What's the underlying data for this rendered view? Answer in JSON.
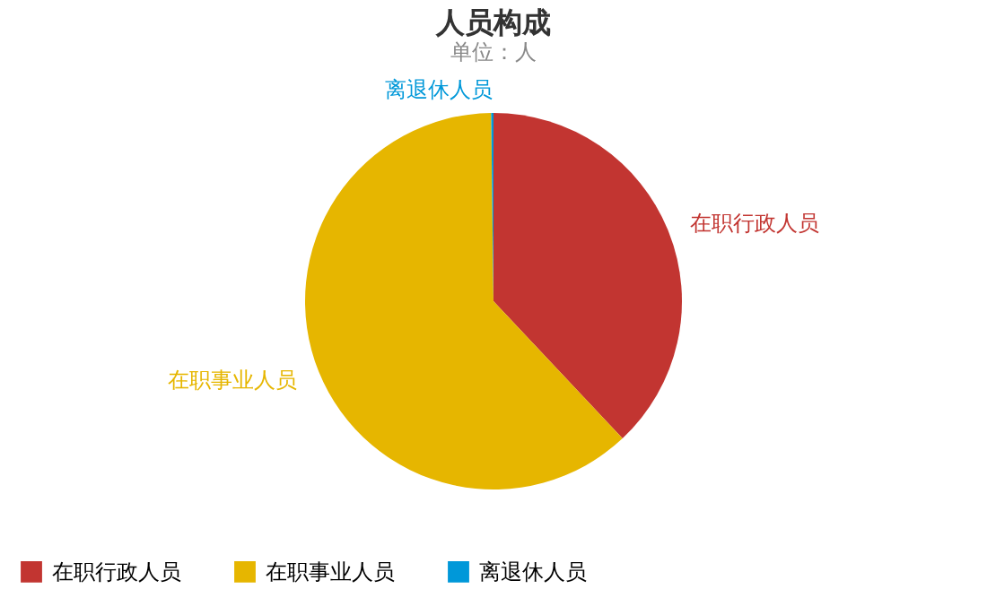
{
  "chart_data": {
    "type": "pie",
    "title": "人员构成",
    "subtitle": "单位：人",
    "categories": [
      "在职行政人员",
      "在职事业人员",
      "离退休人员"
    ],
    "values": [
      38,
      61.8,
      0.2
    ],
    "colors": [
      "#c23531",
      "#e6b600",
      "#0098d9"
    ],
    "legend": "bottom"
  }
}
